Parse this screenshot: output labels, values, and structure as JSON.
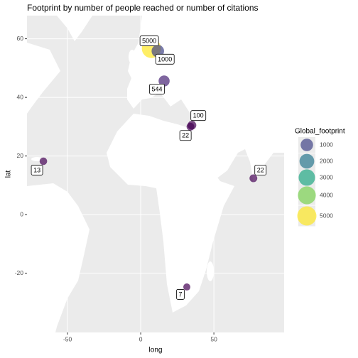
{
  "chart_data": {
    "type": "scatter",
    "title": "Footprint by number of people reached or number of citations",
    "x_label": "long",
    "y_label": "lat",
    "x": [
      7.3,
      11.7,
      16,
      35,
      34,
      -66.5,
      77,
      31.5
    ],
    "y": [
      56.7,
      55.8,
      45.6,
      30.5,
      30,
      18.2,
      12.4,
      -24.7
    ],
    "sizes": [
      5000,
      1000,
      544,
      100,
      22,
      13,
      22,
      7
    ],
    "colors": [
      "#fde725",
      "#414487",
      "#482576",
      "#440154",
      "#440154",
      "#440154",
      "#440154",
      "#440154"
    ],
    "alpha": 0.7,
    "xlim": [
      -77.7,
      98
    ],
    "ylim": [
      -40.2,
      67.9
    ],
    "xticks": [
      -50,
      0,
      50
    ],
    "yticks": [
      60,
      40,
      20,
      0,
      -20
    ],
    "grid": true,
    "legend": {
      "title": "Global_footprint",
      "values": [
        1000,
        2000,
        3000,
        4000,
        5000
      ],
      "colors": [
        "#414487",
        "#2a788e",
        "#22a884",
        "#7ad151",
        "#fde725"
      ],
      "position": "right"
    }
  }
}
